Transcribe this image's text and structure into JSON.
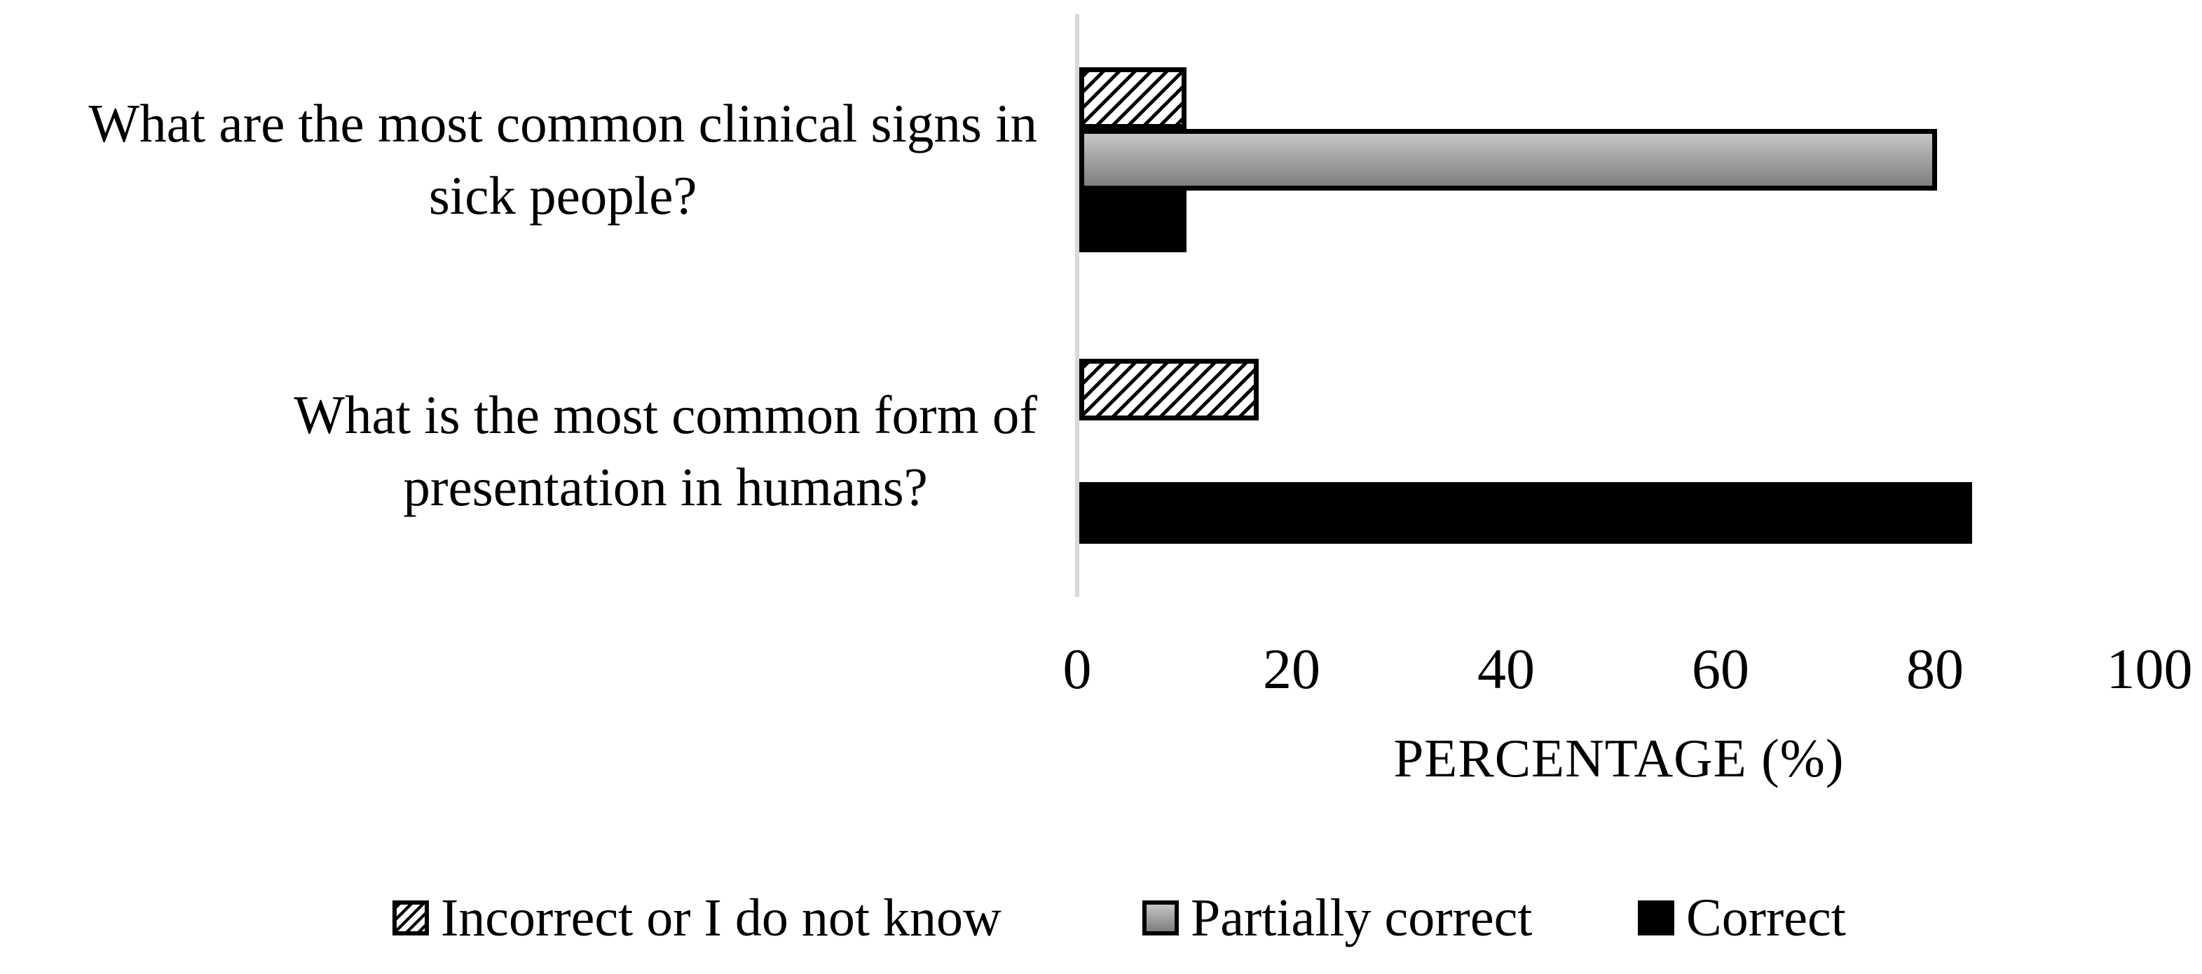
{
  "figure": {
    "background_color": "#ffffff",
    "text_color": "#000000",
    "axis_line_color": "#d9d9d9",
    "bar_border_color": "#000000",
    "gray_gradient_top": "#c6c6c6",
    "gray_gradient_bottom": "#7e7e7e"
  },
  "chart_data": {
    "type": "bar",
    "orientation": "horizontal",
    "title": "",
    "xlabel": "PERCENTAGE (%)",
    "ylabel": "",
    "xlim": [
      0,
      100
    ],
    "x_ticks": [
      0,
      20,
      40,
      60,
      80,
      100
    ],
    "grid": false,
    "legend_position": "bottom",
    "categories": [
      "What are the most common clinical signs in\nsick people?",
      "What is the most common form of\npresentation in humans?"
    ],
    "series": [
      {
        "name": "Incorrect or I do not know",
        "style": "hatched",
        "values": [
          10,
          16.7
        ]
      },
      {
        "name": "Partially correct",
        "style": "gray-gradient",
        "values": [
          80,
          0
        ]
      },
      {
        "name": "Correct",
        "style": "solid-black",
        "values": [
          10,
          83.3
        ]
      }
    ]
  }
}
